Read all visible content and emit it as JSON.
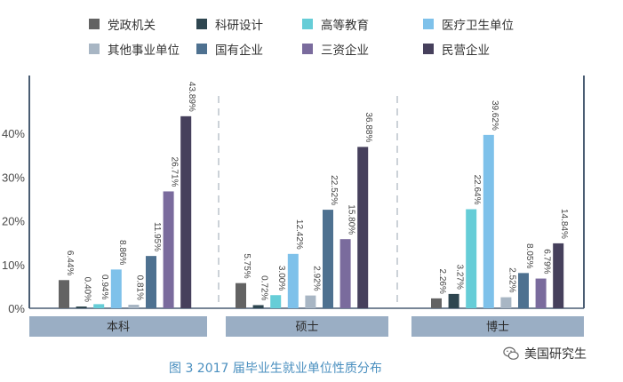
{
  "chart_data": {
    "type": "bar",
    "title": "",
    "xlabel": "",
    "ylabel": "",
    "ylim": [
      0,
      0.5
    ],
    "yticks": [
      {
        "value": 0.0,
        "label": "0%"
      },
      {
        "value": 0.1,
        "label": "10%"
      },
      {
        "value": 0.2,
        "label": "20%"
      },
      {
        "value": 0.3,
        "label": "30%"
      },
      {
        "value": 0.4,
        "label": "40%"
      }
    ],
    "grid": false,
    "legend_position": "top",
    "categories": [
      "本科",
      "硕士",
      "博士"
    ],
    "series": [
      {
        "name": "党政机关",
        "color": "#636363",
        "values": [
          0.0644,
          0.0575,
          0.0226
        ],
        "labels": [
          "6.44%",
          "5.75%",
          "2.26%"
        ]
      },
      {
        "name": "科研设计",
        "color": "#2e4650",
        "values": [
          0.004,
          0.0072,
          0.0327
        ],
        "labels": [
          "0.40%",
          "0.72%",
          "3.27%"
        ]
      },
      {
        "name": "高等教育",
        "color": "#66cdd7",
        "values": [
          0.0094,
          0.03,
          0.2264
        ],
        "labels": [
          "0.94%",
          "3.00%",
          "22.64%"
        ]
      },
      {
        "name": "医疗卫生单位",
        "color": "#7ec1ea",
        "values": [
          0.0886,
          0.1242,
          0.3962
        ],
        "labels": [
          "8.86%",
          "12.42%",
          "39.62%"
        ]
      },
      {
        "name": "其他事业单位",
        "color": "#a8b6c4",
        "values": [
          0.0081,
          0.0292,
          0.0252
        ],
        "labels": [
          "0.81%",
          "2.92%",
          "2.52%"
        ]
      },
      {
        "name": "国有企业",
        "color": "#4e7190",
        "values": [
          0.1195,
          0.2252,
          0.0805
        ],
        "labels": [
          "11.95%",
          "22.52%",
          "8.05%"
        ]
      },
      {
        "name": "三资企业",
        "color": "#7a6b9d",
        "values": [
          0.2671,
          0.158,
          0.0679
        ],
        "labels": [
          "26.71%",
          "15.80%",
          "6.79%"
        ]
      },
      {
        "name": "民营企业",
        "color": "#46405c",
        "values": [
          0.4389,
          0.3688,
          0.1484
        ],
        "labels": [
          "43.89%",
          "36.88%",
          "14.84%"
        ]
      }
    ]
  },
  "caption": "图 3  2017 届毕业生就业单位性质分布",
  "watermark": "美国研究生",
  "colors": {
    "axis": "#4a5d73",
    "category_band": "#9aaec4",
    "caption": "#4a8fbf"
  }
}
